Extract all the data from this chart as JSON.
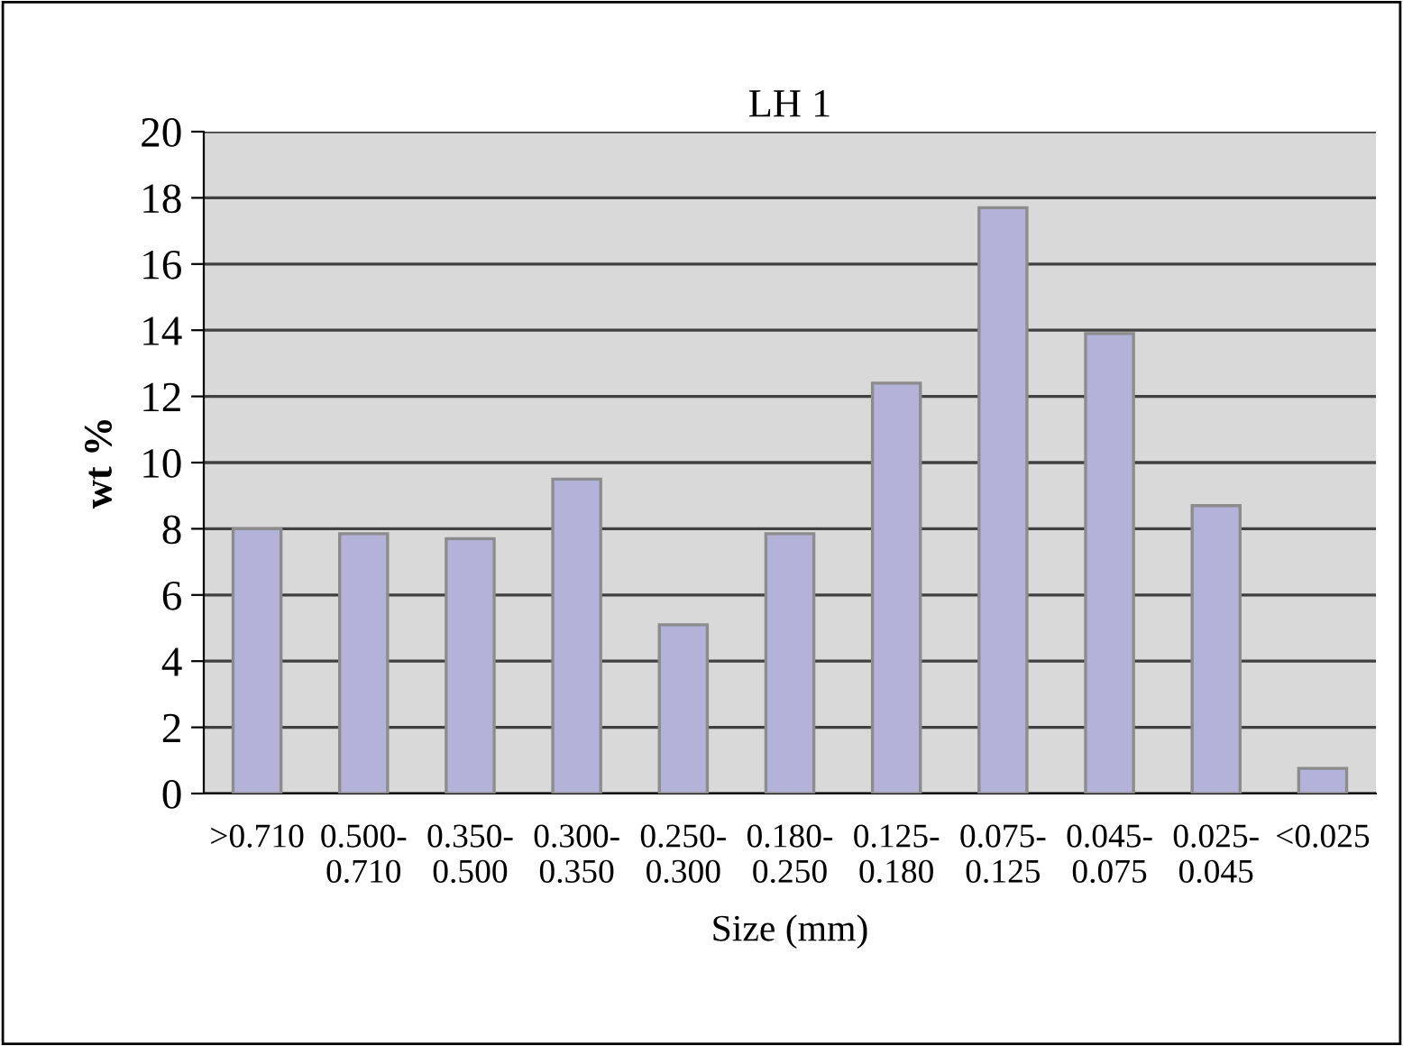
{
  "chart_data": {
    "type": "bar",
    "title": "LH 1",
    "xlabel": "Size (mm)",
    "ylabel": "wt %",
    "categories": [
      ">0.710",
      "0.500-0.710",
      "0.350-0.500",
      "0.300-0.350",
      "0.250-0.300",
      "0.180-0.250",
      "0.125-0.180",
      "0.075-0.125",
      "0.045-0.075",
      "0.025-0.045",
      "<0.025"
    ],
    "values": [
      8.0,
      7.85,
      7.7,
      9.5,
      5.1,
      7.85,
      12.4,
      17.7,
      13.9,
      8.7,
      0.76
    ],
    "color": "#b3b3d9",
    "ylim": [
      0,
      20
    ],
    "yticks": [
      0,
      2,
      4,
      6,
      8,
      10,
      12,
      14,
      16,
      18,
      20
    ],
    "grid": "y",
    "legend": false
  }
}
